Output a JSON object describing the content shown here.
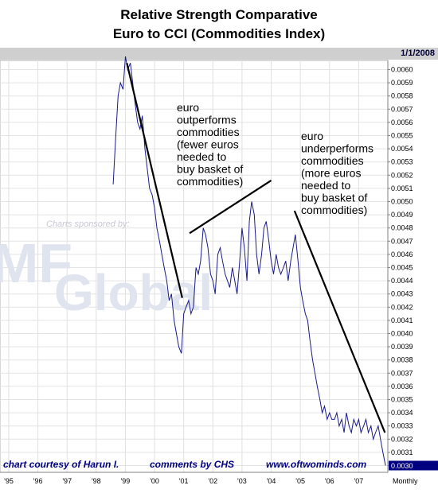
{
  "chart_data": {
    "type": "line",
    "title": "Relative Strength Comparative",
    "subtitle": "Euro to CCI (Commodities Index)",
    "date_label": "1/1/2008",
    "period_label": "Monthly",
    "x_ticks": [
      "'95",
      "'96",
      "'97",
      "'98",
      "'99",
      "'00",
      "'01",
      "'02",
      "'03",
      "'04",
      "'05",
      "'06",
      "'07"
    ],
    "y_ticks": [
      "0.0060",
      "0.0059",
      "0.0058",
      "0.0057",
      "0.0056",
      "0.0055",
      "0.0054",
      "0.0053",
      "0.0052",
      "0.0051",
      "0.0050",
      "0.0049",
      "0.0048",
      "0.0047",
      "0.0046",
      "0.0045",
      "0.0044",
      "0.0043",
      "0.0042",
      "0.0041",
      "0.0040",
      "0.0039",
      "0.0038",
      "0.0037",
      "0.0036",
      "0.0035",
      "0.0034",
      "0.0033",
      "0.0032",
      "0.0031",
      "0.0030"
    ],
    "last_value_label": "0.0030",
    "ylim": [
      0.003,
      0.006
    ],
    "xlim": [
      1994.7,
      2008.0
    ],
    "grid": true,
    "series": [
      {
        "color": "#1a1a8c",
        "x": [
          1998.58,
          1998.67,
          1998.75,
          1998.83,
          1998.92,
          1999.0,
          1999.08,
          1999.17,
          1999.25,
          1999.33,
          1999.42,
          1999.5,
          1999.58,
          1999.67,
          1999.75,
          1999.83,
          1999.92,
          2000.0,
          2000.08,
          2000.17,
          2000.25,
          2000.33,
          2000.42,
          2000.5,
          2000.58,
          2000.67,
          2000.75,
          2000.83,
          2000.92,
          2001.0,
          2001.08,
          2001.17,
          2001.25,
          2001.33,
          2001.42,
          2001.5,
          2001.58,
          2001.67,
          2001.75,
          2001.83,
          2001.92,
          2002.0,
          2002.08,
          2002.17,
          2002.25,
          2002.33,
          2002.42,
          2002.5,
          2002.58,
          2002.67,
          2002.75,
          2002.83,
          2002.92,
          2003.0,
          2003.08,
          2003.17,
          2003.25,
          2003.33,
          2003.42,
          2003.5,
          2003.58,
          2003.67,
          2003.75,
          2003.83,
          2003.92,
          2004.0,
          2004.08,
          2004.17,
          2004.25,
          2004.33,
          2004.42,
          2004.5,
          2004.58,
          2004.67,
          2004.75,
          2004.83,
          2004.92,
          2005.0,
          2005.08,
          2005.17,
          2005.25,
          2005.33,
          2005.42,
          2005.5,
          2005.58,
          2005.67,
          2005.75,
          2005.83,
          2005.92,
          2006.0,
          2006.08,
          2006.17,
          2006.25,
          2006.33,
          2006.42,
          2006.5,
          2006.58,
          2006.67,
          2006.75,
          2006.83,
          2006.92,
          2007.0,
          2007.08,
          2007.17,
          2007.25,
          2007.33,
          2007.42,
          2007.5,
          2007.58,
          2007.67,
          2007.75,
          2007.83,
          2007.92
        ],
        "y": [
          0.00513,
          0.0055,
          0.0058,
          0.0059,
          0.00585,
          0.0061,
          0.006,
          0.00605,
          0.0059,
          0.00575,
          0.0056,
          0.00555,
          0.00565,
          0.0054,
          0.00525,
          0.0051,
          0.00505,
          0.00495,
          0.0048,
          0.0047,
          0.0046,
          0.0045,
          0.0044,
          0.00425,
          0.0043,
          0.0041,
          0.004,
          0.0039,
          0.00385,
          0.00415,
          0.0042,
          0.00425,
          0.00415,
          0.0042,
          0.0045,
          0.00445,
          0.00455,
          0.0048,
          0.00475,
          0.00465,
          0.00445,
          0.0044,
          0.0043,
          0.0046,
          0.00465,
          0.00455,
          0.00445,
          0.0044,
          0.00435,
          0.0045,
          0.0044,
          0.0043,
          0.00455,
          0.0048,
          0.00465,
          0.0044,
          0.00485,
          0.005,
          0.0049,
          0.0046,
          0.00445,
          0.0046,
          0.0048,
          0.00485,
          0.0047,
          0.00455,
          0.00445,
          0.0046,
          0.0045,
          0.00445,
          0.0045,
          0.00455,
          0.0044,
          0.00455,
          0.00465,
          0.00475,
          0.00455,
          0.00435,
          0.00425,
          0.00415,
          0.0041,
          0.00395,
          0.0038,
          0.0037,
          0.0036,
          0.0035,
          0.0034,
          0.00345,
          0.00335,
          0.0034,
          0.00335,
          0.00335,
          0.0034,
          0.0033,
          0.00335,
          0.00325,
          0.0034,
          0.0033,
          0.00325,
          0.00335,
          0.0033,
          0.00335,
          0.00325,
          0.0033,
          0.00335,
          0.00325,
          0.0033,
          0.0032,
          0.00325,
          0.0033,
          0.0032,
          0.0031,
          0.003
        ]
      }
    ],
    "annotations": [
      {
        "lines": [
          "euro",
          "outperforms",
          "commodities",
          "(fewer euros",
          "needed to",
          "buy basket of",
          "commodities)"
        ]
      },
      {
        "lines": [
          "euro",
          "underperforms",
          "commodities",
          "(more euros",
          "needed to",
          "buy basket of",
          "commodities)"
        ]
      }
    ],
    "trendlines": [
      {
        "x": [
          1999.05,
          2000.95
        ],
        "y": [
          0.00605,
          0.00427
        ]
      },
      {
        "x": [
          2001.2,
          2004.0
        ],
        "y": [
          0.00476,
          0.00516
        ]
      },
      {
        "x": [
          2004.8,
          2007.9
        ],
        "y": [
          0.00493,
          0.00325
        ]
      }
    ]
  },
  "watermark": {
    "text_small": "Charts sponsored by:",
    "text_big1": "MF",
    "text_big2": "Global"
  },
  "credits": {
    "left": "chart courtesy of Harun I.",
    "middle": "comments by CHS",
    "right": "www.oftwominds.com"
  }
}
